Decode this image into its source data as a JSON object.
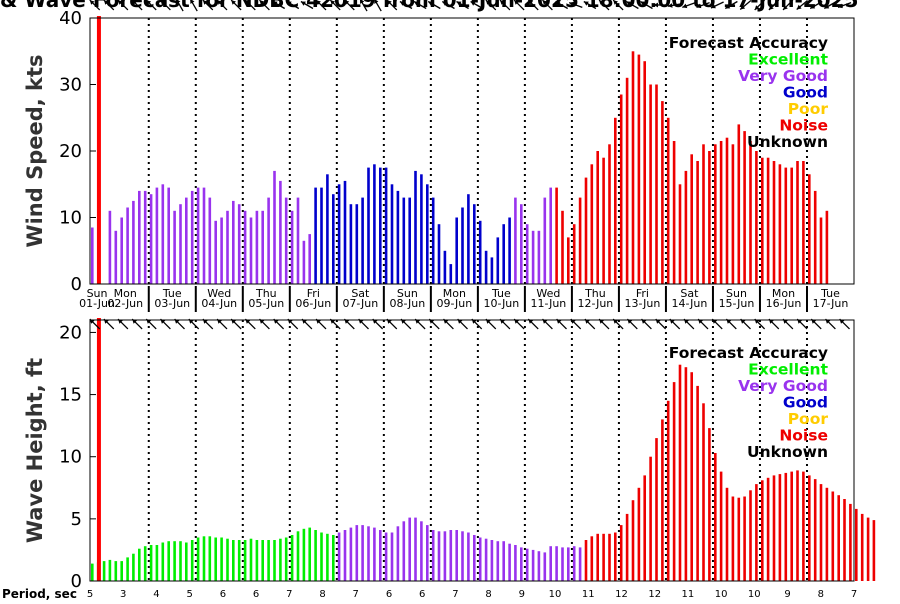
{
  "title": "& Wave Forecast for NDBC 42019 from 01-Jun-2025 18:00:00 to 17-Jun-2025",
  "colors": {
    "Excellent": "#00ee00",
    "Very Good": "#9933ee",
    "Good": "#0000cc",
    "Poor": "#ffcc00",
    "Noise": "#ee0000",
    "Unknown": "#000000",
    "now_line": "#ff0000"
  },
  "legend": {
    "title": "Forecast Accuracy",
    "items": [
      {
        "label": "Excellent",
        "color": "#00ee00"
      },
      {
        "label": "Very Good",
        "color": "#9933ee"
      },
      {
        "label": "Good",
        "color": "#0000cc"
      },
      {
        "label": "Poor",
        "color": "#ffcc00"
      },
      {
        "label": "Noise",
        "color": "#ee0000"
      },
      {
        "label": "Unknown",
        "color": "#000000"
      }
    ]
  },
  "chart_data": [
    {
      "type": "bar",
      "ylabel": "Wind Speed, kts",
      "ylim": [
        0,
        40
      ],
      "yticks": [
        0,
        10,
        20,
        30,
        40
      ],
      "x_unit": "days since 01-Jun 00:00",
      "bar_x_start": 0.75,
      "bar_step": 0.125,
      "now_x": 0.94,
      "day_labels": [
        {
          "dow": "Sun",
          "date": "01-Jun"
        },
        {
          "dow": "Mon",
          "date": "02-Jun"
        },
        {
          "dow": "Tue",
          "date": "03-Jun"
        },
        {
          "dow": "Wed",
          "date": "04-Jun"
        },
        {
          "dow": "Thu",
          "date": "05-Jun"
        },
        {
          "dow": "Fri",
          "date": "06-Jun"
        },
        {
          "dow": "Sat",
          "date": "07-Jun"
        },
        {
          "dow": "Sun",
          "date": "08-Jun"
        },
        {
          "dow": "Mon",
          "date": "09-Jun"
        },
        {
          "dow": "Tue",
          "date": "10-Jun"
        },
        {
          "dow": "Wed",
          "date": "11-Jun"
        },
        {
          "dow": "Thu",
          "date": "12-Jun"
        },
        {
          "dow": "Fri",
          "date": "13-Jun"
        },
        {
          "dow": "Sat",
          "date": "14-Jun"
        },
        {
          "dow": "Sun",
          "date": "15-Jun"
        },
        {
          "dow": "Mon",
          "date": "16-Jun"
        },
        {
          "dow": "Tue",
          "date": "17-Jun"
        }
      ],
      "segments": [
        {
          "category": "Very Good",
          "values": [
            8.5,
            0,
            0,
            11,
            8,
            10,
            11.5,
            12.5,
            14,
            14,
            13.5,
            14.5,
            15,
            14.5,
            11,
            12,
            13,
            14,
            14.5,
            14.5,
            13,
            9.5,
            10,
            11,
            12.5,
            12,
            11,
            10,
            11,
            11,
            13,
            17,
            15.5,
            13,
            11,
            13,
            6.5,
            7.5
          ]
        },
        {
          "category": "Good",
          "values": [
            14.5,
            14.5,
            16.5,
            13.5,
            15,
            15.5,
            12,
            12,
            13,
            17.5,
            18,
            17.5,
            17.5,
            15,
            14,
            13,
            13,
            17,
            16.5,
            15,
            13,
            9,
            5,
            3,
            10,
            11.5,
            13.5,
            12,
            9.5,
            5,
            4,
            7,
            9,
            10
          ]
        },
        {
          "category": "Very Good",
          "values": [
            13,
            12,
            9,
            8,
            8,
            13,
            14.5
          ]
        },
        {
          "category": "Noise",
          "values": [
            14.5,
            11,
            7,
            9,
            13,
            16,
            18,
            20,
            19,
            21,
            25,
            28.5,
            31,
            35,
            34.5,
            33.5,
            30,
            30,
            27.5,
            25,
            21.5,
            15,
            17,
            19.5,
            18.5,
            21,
            20,
            21,
            21.5,
            22,
            21,
            24,
            23,
            21.5,
            20,
            19,
            19,
            18.5,
            18,
            17.5,
            17.5,
            18.5,
            18.5,
            16.5,
            14,
            10,
            11
          ]
        }
      ],
      "wind_direction_deg": [
        315,
        315,
        315,
        315,
        315,
        315,
        330,
        330,
        315,
        315,
        315,
        315,
        315,
        300,
        300,
        300,
        315,
        315,
        315,
        330,
        330,
        315,
        300,
        300,
        300,
        300,
        300,
        300,
        315,
        315,
        315,
        315,
        315,
        300,
        290,
        300,
        315,
        315,
        300,
        300,
        270,
        260,
        250,
        250,
        245,
        240,
        230,
        225,
        225,
        225,
        230,
        240,
        240,
        250
      ]
    },
    {
      "type": "bar",
      "ylabel": "Wave Height, ft",
      "ylim": [
        0,
        21
      ],
      "yticks": [
        0,
        5,
        10,
        15,
        20
      ],
      "x_unit": "days since 01-Jun 00:00",
      "bar_x_start": 0.75,
      "bar_step": 0.125,
      "now_x": 0.94,
      "segments": [
        {
          "category": "Excellent",
          "values": [
            1.4,
            1.5,
            1.6,
            1.7,
            1.6,
            1.6,
            1.9,
            2.2,
            2.6,
            2.8,
            2.9,
            2.9,
            3.1,
            3.2,
            3.2,
            3.2,
            3.1,
            3.3,
            3.5,
            3.6,
            3.6,
            3.5,
            3.5,
            3.4,
            3.3,
            3.3,
            3.3,
            3.4,
            3.3,
            3.3,
            3.3,
            3.3,
            3.4,
            3.5,
            3.7,
            4.0,
            4.2,
            4.3,
            4.1,
            3.9,
            3.8,
            3.7
          ]
        },
        {
          "category": "Very Good",
          "values": [
            3.9,
            4.1,
            4.3,
            4.5,
            4.5,
            4.4,
            4.3,
            4.1,
            3.9,
            3.9,
            4.4,
            4.8,
            5.1,
            5.1,
            4.8,
            4.5,
            4.1,
            4.0,
            4.0,
            4.1,
            4.1,
            4.0,
            3.9,
            3.7,
            3.5,
            3.4,
            3.3,
            3.2,
            3.2,
            3.0,
            2.9,
            2.7,
            2.6,
            2.5,
            2.4,
            2.3,
            2.8,
            2.8,
            2.7,
            2.7,
            2.8,
            2.7
          ]
        },
        {
          "category": "Noise",
          "values": [
            3.3,
            3.6,
            3.8,
            3.8,
            3.8,
            3.9,
            4.5,
            5.4,
            6.5,
            7.5,
            8.5,
            10,
            11.5,
            13,
            14.5,
            16,
            17.4,
            17.2,
            16.8,
            15.7,
            14.3,
            12.3,
            10.3,
            8.8,
            7.5,
            6.8,
            6.7,
            6.8,
            7.3,
            7.8,
            8.1,
            8.3,
            8.5,
            8.6,
            8.7,
            8.8,
            8.9,
            8.8,
            8.5,
            8.2,
            7.8,
            7.5,
            7.2,
            6.9,
            6.6,
            6.2,
            5.8,
            5.4,
            5.1,
            4.9
          ]
        }
      ],
      "wave_direction_deg": [
        315,
        315,
        315,
        315,
        315,
        315,
        315,
        315,
        315,
        315,
        315,
        315,
        315,
        315,
        315,
        315,
        315,
        315,
        315,
        315,
        315,
        315,
        315,
        315,
        315,
        315,
        315,
        315,
        315,
        315,
        315,
        315,
        315,
        315,
        315,
        315,
        315,
        315,
        315,
        315,
        315,
        315,
        315,
        315,
        315,
        315,
        315,
        315,
        315,
        315,
        315,
        315,
        315,
        315
      ],
      "period_label": "Period, sec",
      "period_values": [
        5,
        3,
        4,
        5,
        6,
        6,
        7,
        8,
        7,
        6,
        6,
        7,
        8,
        9,
        10,
        11,
        12,
        12,
        11,
        10,
        10,
        9,
        8,
        7
      ]
    }
  ]
}
